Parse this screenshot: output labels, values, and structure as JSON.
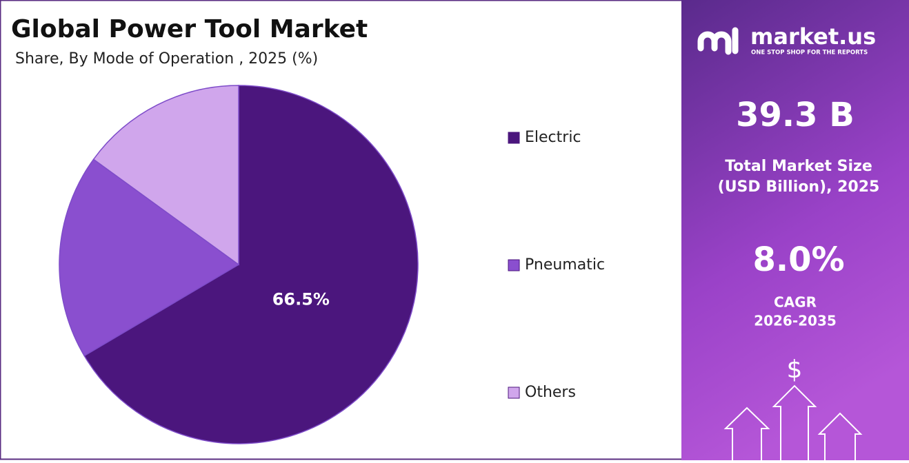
{
  "chart_data": {
    "type": "pie",
    "title": "Global Power Tool Market",
    "subtitle": "Share, By Mode of Operation , 2025 (%)",
    "categories": [
      "Electric",
      "Pneumatic",
      "Others"
    ],
    "values": [
      66.5,
      18.5,
      15
    ],
    "value_labels": [
      "66.5%",
      null,
      null
    ],
    "colors": [
      "#4b167d",
      "#8a4fcf",
      "#d0a6ec"
    ],
    "legend": "right"
  },
  "panel": {
    "brand": "market.us",
    "tagline": "ONE STOP SHOP FOR THE REPORTS",
    "market_size": "39.3 B",
    "market_size_label": [
      "Total Market Size",
      "(USD Billion), 2025"
    ],
    "cagr": "8.0%",
    "cagr_label": [
      "CAGR",
      "2026-2035"
    ],
    "currency_symbol": "$"
  }
}
